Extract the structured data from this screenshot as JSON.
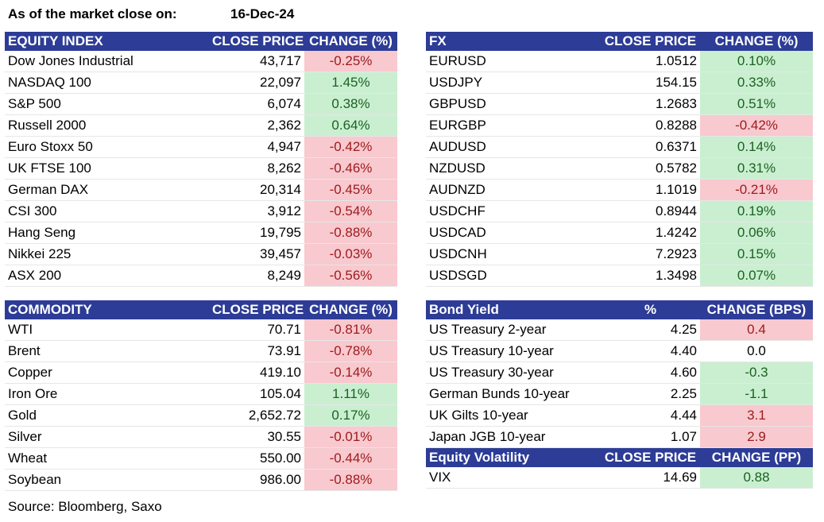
{
  "header": {
    "label": "As of the market close on:",
    "date": "16-Dec-24"
  },
  "equity": {
    "headers": [
      "EQUITY INDEX",
      "CLOSE PRICE",
      "CHANGE (%)"
    ],
    "rows": [
      {
        "name": "Dow Jones Industrial",
        "close": "43,717",
        "change": "-0.25%",
        "dir": "neg"
      },
      {
        "name": "NASDAQ 100",
        "close": "22,097",
        "change": "1.45%",
        "dir": "pos"
      },
      {
        "name": "S&P 500",
        "close": "6,074",
        "change": "0.38%",
        "dir": "pos"
      },
      {
        "name": "Russell 2000",
        "close": "2,362",
        "change": "0.64%",
        "dir": "pos"
      },
      {
        "name": "Euro Stoxx 50",
        "close": "4,947",
        "change": "-0.42%",
        "dir": "neg"
      },
      {
        "name": "UK FTSE 100",
        "close": "8,262",
        "change": "-0.46%",
        "dir": "neg"
      },
      {
        "name": "German DAX",
        "close": "20,314",
        "change": "-0.45%",
        "dir": "neg"
      },
      {
        "name": "CSI 300",
        "close": "3,912",
        "change": "-0.54%",
        "dir": "neg"
      },
      {
        "name": "Hang Seng",
        "close": "19,795",
        "change": "-0.88%",
        "dir": "neg"
      },
      {
        "name": "Nikkei 225",
        "close": "39,457",
        "change": "-0.03%",
        "dir": "neg"
      },
      {
        "name": "ASX 200",
        "close": "8,249",
        "change": "-0.56%",
        "dir": "neg"
      }
    ]
  },
  "fx": {
    "headers": [
      "FX",
      "CLOSE PRICE",
      "CHANGE (%)"
    ],
    "rows": [
      {
        "name": "EURUSD",
        "close": "1.0512",
        "change": "0.10%",
        "dir": "pos"
      },
      {
        "name": "USDJPY",
        "close": "154.15",
        "change": "0.33%",
        "dir": "pos"
      },
      {
        "name": "GBPUSD",
        "close": "1.2683",
        "change": "0.51%",
        "dir": "pos"
      },
      {
        "name": "EURGBP",
        "close": "0.8288",
        "change": "-0.42%",
        "dir": "neg"
      },
      {
        "name": "AUDUSD",
        "close": "0.6371",
        "change": "0.14%",
        "dir": "pos"
      },
      {
        "name": "NZDUSD",
        "close": "0.5782",
        "change": "0.31%",
        "dir": "pos"
      },
      {
        "name": "AUDNZD",
        "close": "1.1019",
        "change": "-0.21%",
        "dir": "neg"
      },
      {
        "name": "USDCHF",
        "close": "0.8944",
        "change": "0.19%",
        "dir": "pos"
      },
      {
        "name": "USDCAD",
        "close": "1.4242",
        "change": "0.06%",
        "dir": "pos"
      },
      {
        "name": "USDCNH",
        "close": "7.2923",
        "change": "0.15%",
        "dir": "pos"
      },
      {
        "name": "USDSGD",
        "close": "1.3498",
        "change": "0.07%",
        "dir": "pos"
      }
    ]
  },
  "commodity": {
    "headers": [
      "COMMODITY",
      "CLOSE PRICE",
      "CHANGE (%)"
    ],
    "rows": [
      {
        "name": "WTI",
        "close": "70.71",
        "change": "-0.81%",
        "dir": "neg"
      },
      {
        "name": "Brent",
        "close": "73.91",
        "change": "-0.78%",
        "dir": "neg"
      },
      {
        "name": "Copper",
        "close": "419.10",
        "change": "-0.14%",
        "dir": "neg"
      },
      {
        "name": "Iron Ore",
        "close": "105.04",
        "change": "1.11%",
        "dir": "pos"
      },
      {
        "name": "Gold",
        "close": "2,652.72",
        "change": "0.17%",
        "dir": "pos"
      },
      {
        "name": "Silver",
        "close": "30.55",
        "change": "-0.01%",
        "dir": "neg"
      },
      {
        "name": "Wheat",
        "close": "550.00",
        "change": "-0.44%",
        "dir": "neg"
      },
      {
        "name": "Soybean",
        "close": "986.00",
        "change": "-0.88%",
        "dir": "neg"
      }
    ]
  },
  "bond": {
    "headers": [
      "Bond Yield",
      "%",
      "CHANGE (BPS)"
    ],
    "rows": [
      {
        "name": "US Treasury 2-year",
        "close": "4.25",
        "change": "0.4",
        "dir": "neg"
      },
      {
        "name": "US Treasury 10-year",
        "close": "4.40",
        "change": "0.0",
        "dir": "flat"
      },
      {
        "name": "US Treasury 30-year",
        "close": "4.60",
        "change": "-0.3",
        "dir": "pos"
      },
      {
        "name": "German Bunds 10-year",
        "close": "2.25",
        "change": "-1.1",
        "dir": "pos"
      },
      {
        "name": "UK Gilts 10-year",
        "close": "4.44",
        "change": "3.1",
        "dir": "neg"
      },
      {
        "name": "Japan JGB 10-year",
        "close": "1.07",
        "change": "2.9",
        "dir": "neg"
      }
    ]
  },
  "volatility": {
    "headers": [
      "Equity Volatility",
      "CLOSE PRICE",
      "CHANGE (PP)"
    ],
    "rows": [
      {
        "name": "VIX",
        "close": "14.69",
        "change": "0.88",
        "dir": "pos"
      }
    ]
  },
  "source": "Source: Bloomberg, Saxo"
}
